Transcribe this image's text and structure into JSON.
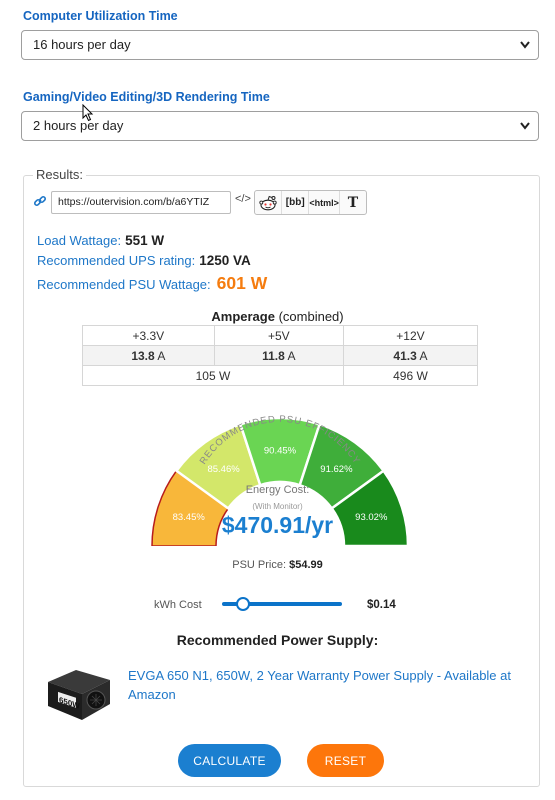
{
  "form": {
    "computer_time": {
      "label": "Computer Utilization Time",
      "value": "16 hours per day"
    },
    "gaming_time": {
      "label": "Gaming/Video Editing/3D Rendering Time",
      "value": "2 hours per day"
    }
  },
  "results": {
    "title": "Results:",
    "share_url": "https://outervision.com/b/a6YTIZ",
    "embed_label": "</>",
    "share_buttons": [
      "[bb]",
      "<html>",
      "T"
    ],
    "load_wattage": {
      "label": "Load Wattage:",
      "value": "551 W"
    },
    "ups_rating": {
      "label": "Recommended UPS rating:",
      "value": "1250 VA"
    },
    "psu_wattage": {
      "label": "Recommended PSU Wattage:",
      "value": "601 W"
    }
  },
  "amperage": {
    "title": "Amperage",
    "subtitle": "(combined)",
    "rails": [
      "+3.3V",
      "+5V",
      "+12V"
    ],
    "amps": [
      "13.8",
      "11.8",
      "41.3"
    ],
    "amp_unit": "A",
    "watts": [
      "105 W",
      "496 W"
    ]
  },
  "gauge": {
    "title": "RECOMMENDED PSU EFFICIENCY",
    "segments": [
      {
        "label": "83.45%",
        "color": "#f8b73a"
      },
      {
        "label": "85.46%",
        "color": "#d3e76a"
      },
      {
        "label": "90.45%",
        "color": "#6ad553"
      },
      {
        "label": "91.62%",
        "color": "#3fae3a"
      },
      {
        "label": "93.02%",
        "color": "#198a1c"
      }
    ],
    "active_index": 0
  },
  "energy": {
    "label": "Energy Cost:",
    "sub": "(With Monitor)",
    "value": "$470.91/yr"
  },
  "psu_price": {
    "label": "PSU Price:",
    "value": "$54.99"
  },
  "kwh": {
    "label": "kWh Cost",
    "value": "$0.14"
  },
  "recommendation": {
    "title": "Recommended Power Supply:",
    "product": "EVGA 650 N1, 650W, 2 Year Warranty Power Supply - Available at Amazon",
    "image_text": "650W"
  },
  "buttons": {
    "calculate": "CALCULATE",
    "reset": "RESET"
  },
  "colors": {
    "link": "#1e77c8",
    "label": "#1565c0",
    "orange": "#f57c0f",
    "blue_button": "#1b7fd0",
    "orange_button": "#fd760b"
  }
}
